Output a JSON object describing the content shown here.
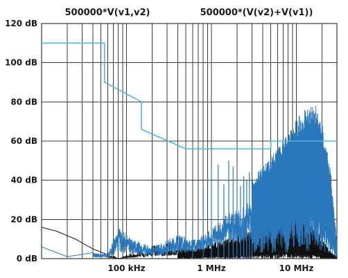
{
  "chart_data": {
    "type": "line",
    "title": "",
    "xlabel": "",
    "ylabel": "",
    "x_scale": "log",
    "xlim_hz": [
      10000,
      30000000
    ],
    "ylim": [
      0,
      120
    ],
    "grid": true,
    "legend": [
      {
        "name": "500000*V(v1,v2)",
        "placement": "top-left"
      },
      {
        "name": "500000*(V(v2)+V(v1))",
        "placement": "top-right"
      }
    ],
    "y_ticks": [
      {
        "value": 0,
        "label": "0 dB"
      },
      {
        "value": 20,
        "label": "20 dB"
      },
      {
        "value": 40,
        "label": "40 dB"
      },
      {
        "value": 60,
        "label": "60 dB"
      },
      {
        "value": 80,
        "label": "80 dB"
      },
      {
        "value": 100,
        "label": "100 dB"
      },
      {
        "value": 120,
        "label": "120 dB"
      }
    ],
    "x_ticks": [
      {
        "value": 100000,
        "label": "100 kHz"
      },
      {
        "value": 1000000,
        "label": "1 MHz"
      },
      {
        "value": 10000000,
        "label": "10 MHz"
      }
    ],
    "series": [
      {
        "role": "limit-line",
        "color": "#4fb6e3",
        "x": [
          10000,
          55000,
          55000,
          150000,
          150000,
          500000,
          500000,
          5000000,
          5000000,
          30000000
        ],
        "y": [
          110,
          110,
          90,
          80,
          66,
          56,
          56,
          56,
          60,
          60
        ]
      },
      {
        "role": "common-mode-noise",
        "color": "#2a78bb",
        "envelope_x": [
          10000,
          20000,
          40000,
          60000,
          80000,
          120000,
          200000,
          400000,
          700000,
          1000000,
          1500000,
          2000000,
          3000000,
          4000000,
          6000000,
          8000000,
          10000000,
          13000000,
          17000000,
          20000000,
          25000000,
          30000000
        ],
        "envelope_y": [
          6,
          1,
          3,
          2,
          16,
          10,
          6,
          12,
          14,
          20,
          30,
          33,
          40,
          48,
          56,
          64,
          72,
          77,
          78,
          70,
          48,
          8
        ],
        "spikes_x": [
          600000,
          800000,
          1000000,
          1200000,
          1400000,
          1600000,
          1800000,
          2000000,
          2200000,
          2400000,
          2600000,
          2800000,
          3000000
        ],
        "spikes_y": [
          16,
          36,
          46,
          48,
          38,
          50,
          47,
          40,
          37,
          42,
          40,
          44,
          32
        ]
      },
      {
        "role": "differential-mode-noise",
        "color": "#111111",
        "envelope_x": [
          10000,
          15000,
          25000,
          40000,
          60000,
          80000,
          120000,
          200000,
          400000,
          700000,
          1000000,
          1500000,
          2000000,
          3000000,
          4000000,
          6000000,
          8000000,
          10000000,
          12000000,
          16000000,
          20000000,
          25000000,
          30000000
        ],
        "envelope_y": [
          16,
          14,
          10,
          5,
          2,
          0,
          2,
          4,
          5,
          6,
          8,
          10,
          12,
          16,
          20,
          25,
          28,
          27,
          24,
          18,
          10,
          4,
          1
        ]
      }
    ]
  }
}
